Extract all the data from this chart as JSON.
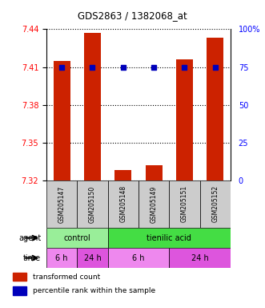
{
  "title": "GDS2863 / 1382068_at",
  "samples": [
    "GSM205147",
    "GSM205150",
    "GSM205148",
    "GSM205149",
    "GSM205151",
    "GSM205152"
  ],
  "bar_values": [
    7.415,
    7.437,
    7.328,
    7.332,
    7.416,
    7.433
  ],
  "bar_bottom": 7.32,
  "blue_dots": [
    75,
    75,
    75,
    75,
    75,
    75
  ],
  "ylim_left": [
    7.32,
    7.44
  ],
  "ylim_right": [
    0,
    100
  ],
  "yticks_left": [
    7.32,
    7.35,
    7.38,
    7.41,
    7.44
  ],
  "yticks_right": [
    0,
    25,
    50,
    75,
    100
  ],
  "bar_color": "#cc2200",
  "dot_color": "#0000bb",
  "agent_groups": [
    {
      "label": "control",
      "start": 0,
      "end": 2,
      "color": "#99ee99"
    },
    {
      "label": "tienilic acid",
      "start": 2,
      "end": 6,
      "color": "#44dd44"
    }
  ],
  "time_groups": [
    {
      "label": "6 h",
      "start": 0,
      "end": 1,
      "color": "#ee88ee"
    },
    {
      "label": "24 h",
      "start": 1,
      "end": 2,
      "color": "#dd55dd"
    },
    {
      "label": "6 h",
      "start": 2,
      "end": 4,
      "color": "#ee88ee"
    },
    {
      "label": "24 h",
      "start": 4,
      "end": 6,
      "color": "#dd55dd"
    }
  ],
  "legend_bar_color": "#cc2200",
  "legend_dot_color": "#0000bb",
  "bg_color": "#ffffff",
  "sample_bg_color": "#cccccc"
}
